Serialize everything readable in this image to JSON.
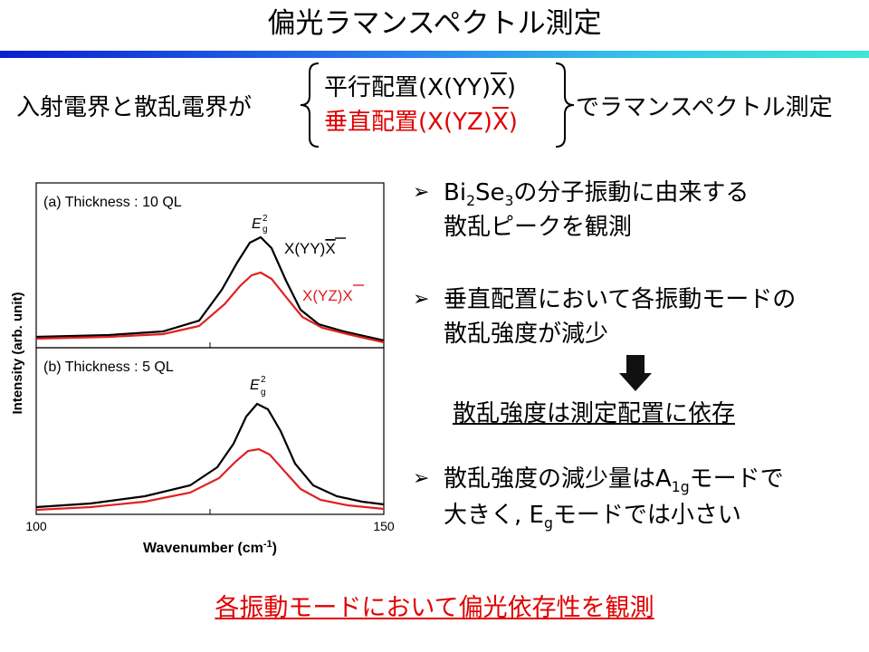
{
  "title": "偏光ラマンスペクトル測定",
  "condition": {
    "prefix": "入射電界と散乱電界が",
    "option_parallel_pre": "平行配置(X(YY)",
    "option_parallel_bar": "X",
    "option_parallel_post": ")",
    "option_perp_pre": "垂直配置(X(YZ)",
    "option_perp_bar": "X",
    "option_perp_post": ")",
    "suffix": "でラマンスペクトル測定",
    "perp_color": "#e00000"
  },
  "graph": {
    "ylabel": "Intensity (arb. unit)",
    "xlabel_pre": "Wavenumber (cm",
    "xlabel_sup": "-1",
    "xlabel_post": ")",
    "xtick_min": "100",
    "xtick_max": "150",
    "panel_a_label": "(a) Thickness : 10 QL",
    "panel_b_label": "(b) Thickness : 5 QL",
    "peak_label_main": "E",
    "peak_label_sup": "2",
    "peak_label_sub": "g",
    "legend_yy_pre": "X(YY)",
    "legend_yy_bar": "X",
    "legend_yz_pre": "X(YZ)",
    "legend_yz_bar": "X",
    "colors": {
      "parallel": "#000000",
      "perpendicular": "#e02020"
    }
  },
  "bullets": {
    "marker": "➢",
    "b1_pre": "Bi",
    "b1_sub1": "2",
    "b1_mid": "Se",
    "b1_sub2": "3",
    "b1_post": "の分子振動に由来する",
    "b1_line2": "散乱ピークを観測",
    "b2_line1": "垂直配置において各振動モードの",
    "b2_line2": "散乱強度が減少",
    "conclusion": "散乱強度は測定配置に依存",
    "b3_pre": "散乱強度の減少量はA",
    "b3_sub": "1g",
    "b3_post": "モードで",
    "b3_line2_pre": "大きく, E",
    "b3_line2_sub": "g",
    "b3_line2_post": "モードでは小さい"
  },
  "summary": "各振動モードにおいて偏光依存性を観測",
  "accent": {
    "red": "#e00000",
    "gradient_start": "#0a1fd0",
    "gradient_end": "#3fe6d6"
  }
}
